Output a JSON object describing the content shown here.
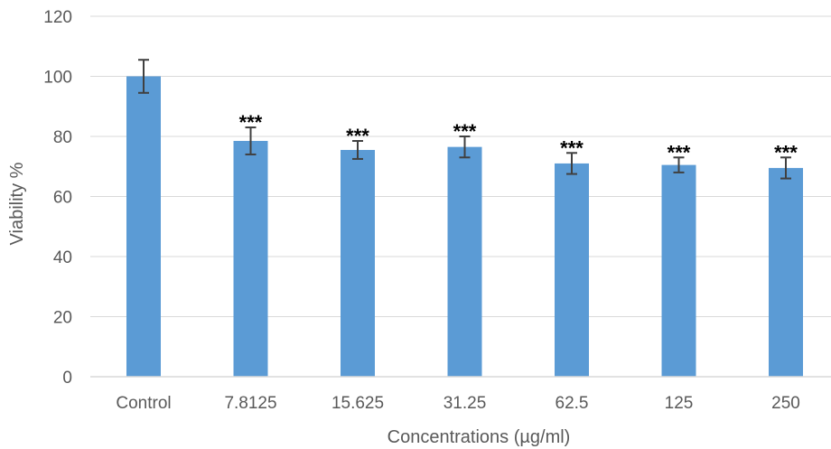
{
  "chart_data": {
    "type": "bar",
    "xlabel": "Concentrations (µg/ml)",
    "ylabel": "Viability %",
    "ylim": [
      0,
      120
    ],
    "yticks": [
      0,
      20,
      40,
      60,
      80,
      100,
      120
    ],
    "grid": true,
    "legend": "none",
    "categories": [
      "Control",
      "7.8125",
      "15.625",
      "31.25",
      "62.5",
      "125",
      "250"
    ],
    "values": [
      100,
      78.5,
      75.5,
      76.5,
      71,
      70.5,
      69.5
    ],
    "errors": [
      5.5,
      4.5,
      3,
      3.5,
      3.5,
      2.5,
      3.5
    ],
    "annotations": [
      "",
      "***",
      "***",
      "***",
      "***",
      "***",
      "***"
    ],
    "colors": {
      "bar": "#5b9bd5",
      "grid": "#d9d9d9",
      "error": "#404040"
    }
  }
}
